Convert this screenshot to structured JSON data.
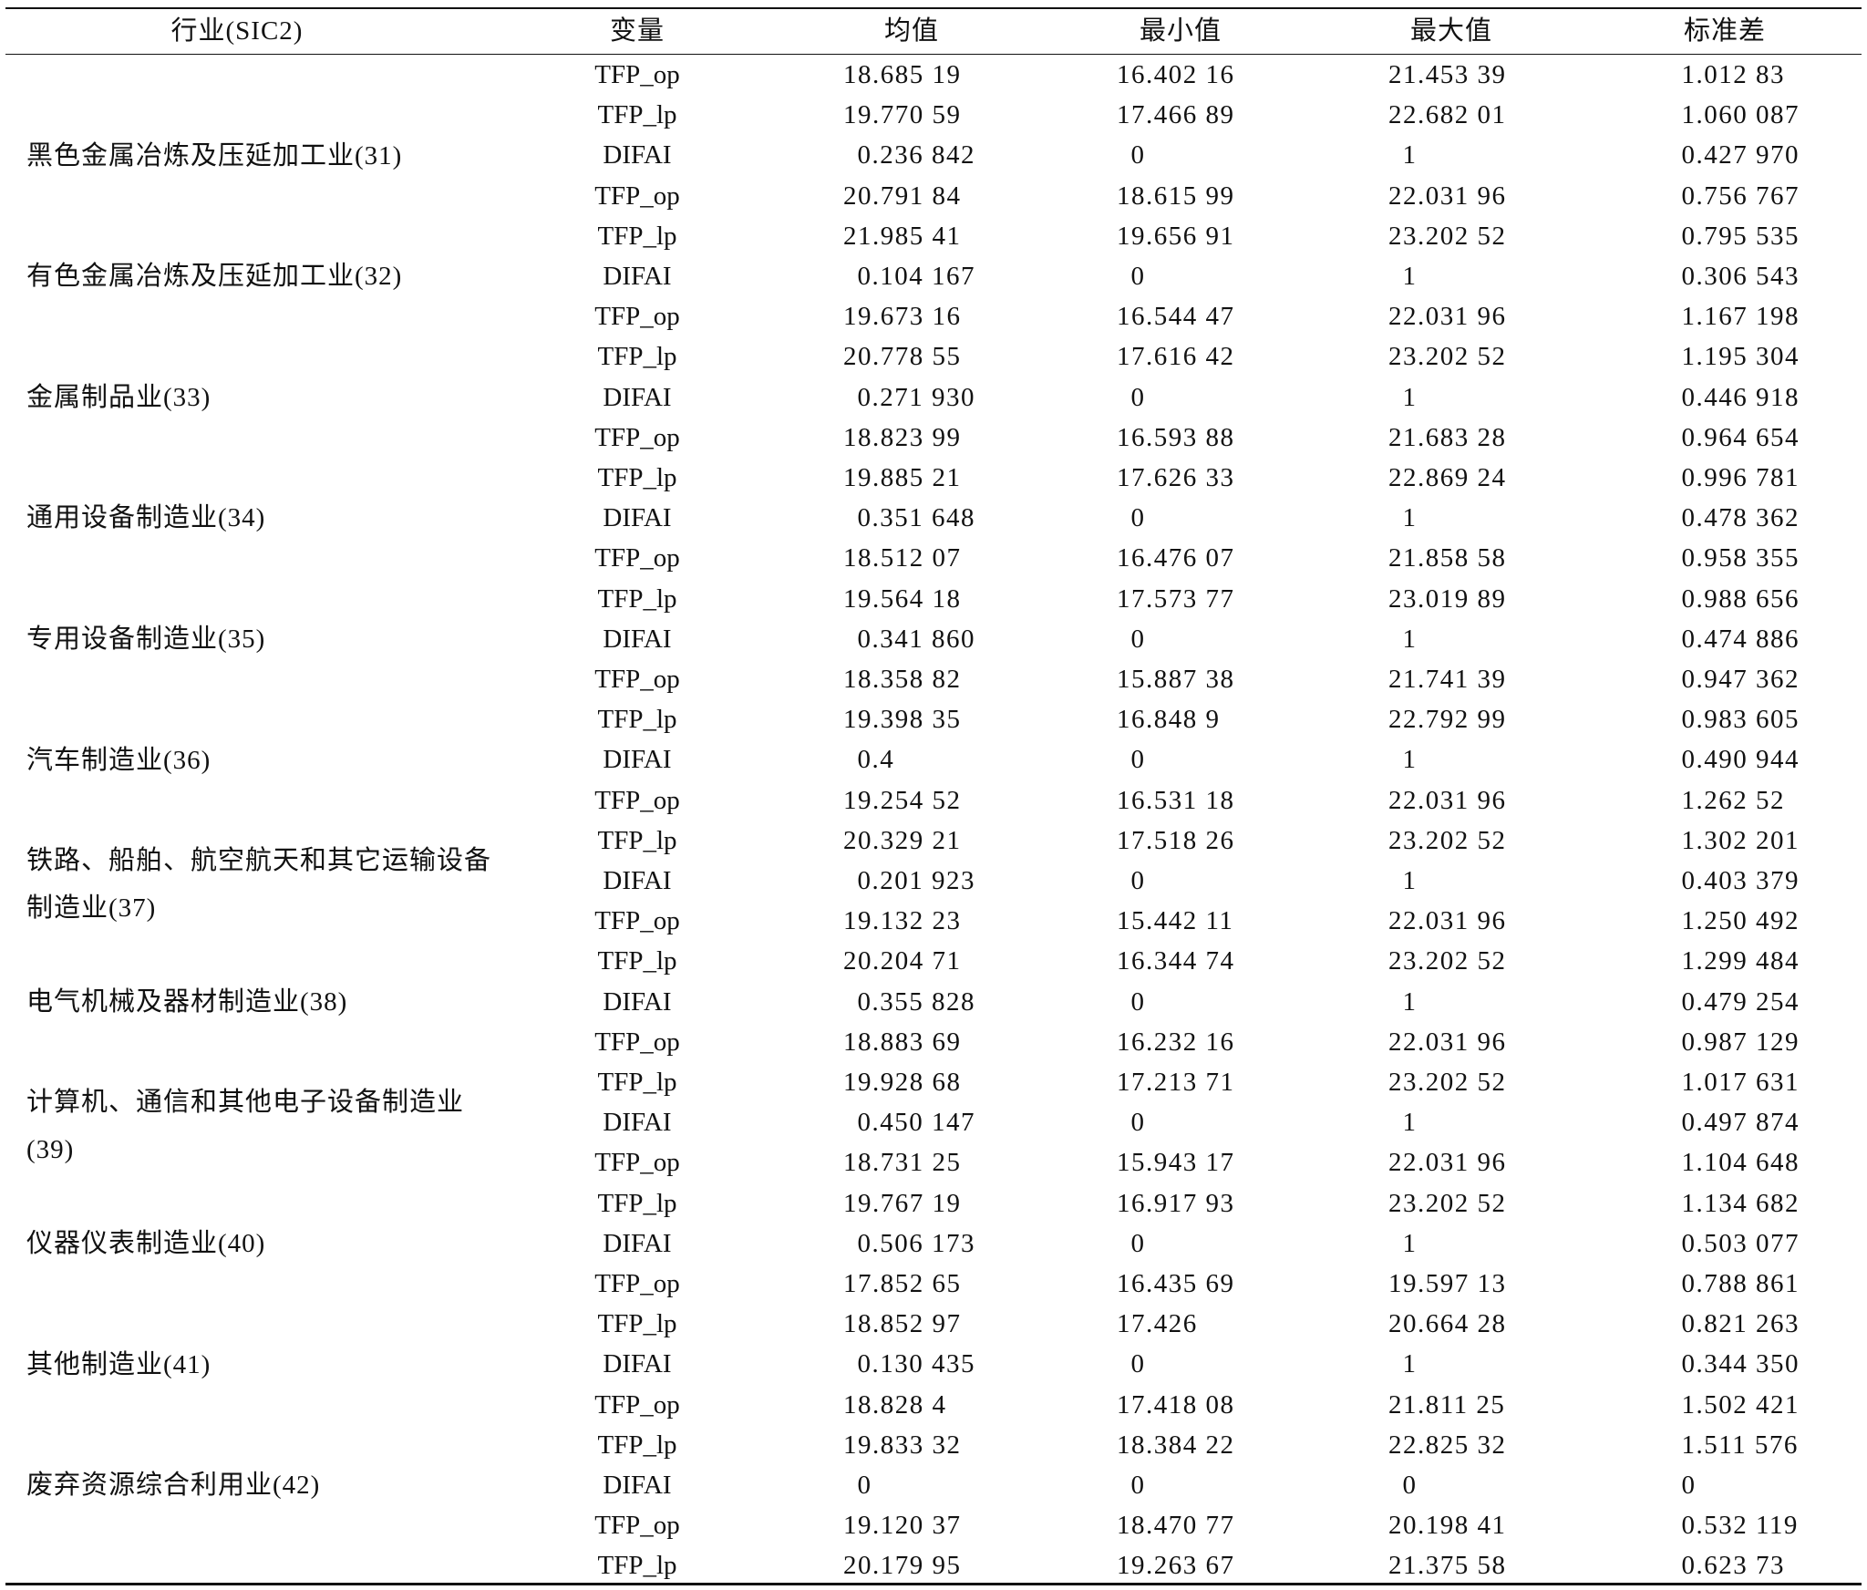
{
  "headers": [
    "行业(SIC2)",
    "变量",
    "均值",
    "最小值",
    "最大值",
    "标准差"
  ],
  "rows": [
    {
      "industry": "",
      "var": "TFP_op",
      "mean": "18.685 19",
      "min": "16.402 16",
      "max": "21.453 39",
      "sd": "1.012 83"
    },
    {
      "industry": "",
      "var": "TFP_lp",
      "mean": "19.770 59",
      "min": "17.466 89",
      "max": "22.682 01",
      "sd": "1.060 087"
    },
    {
      "industry": "黑色金属冶炼及压延加工业(31)",
      "var": "DIFAI",
      "mean": "0.236 842",
      "min": "0",
      "max": "1",
      "sd": "0.427 970"
    },
    {
      "industry": "",
      "var": "TFP_op",
      "mean": "20.791 84",
      "min": "18.615 99",
      "max": "22.031 96",
      "sd": "0.756 767"
    },
    {
      "industry": "",
      "var": "TFP_lp",
      "mean": "21.985 41",
      "min": "19.656 91",
      "max": "23.202 52",
      "sd": "0.795 535"
    },
    {
      "industry": "有色金属冶炼及压延加工业(32)",
      "var": "DIFAI",
      "mean": "0.104 167",
      "min": "0",
      "max": "1",
      "sd": "0.306 543"
    },
    {
      "industry": "",
      "var": "TFP_op",
      "mean": "19.673 16",
      "min": "16.544 47",
      "max": "22.031 96",
      "sd": "1.167 198"
    },
    {
      "industry": "",
      "var": "TFP_lp",
      "mean": "20.778 55",
      "min": "17.616 42",
      "max": "23.202 52",
      "sd": "1.195 304"
    },
    {
      "industry": "金属制品业(33)",
      "var": "DIFAI",
      "mean": "0.271 930",
      "min": "0",
      "max": "1",
      "sd": "0.446 918"
    },
    {
      "industry": "",
      "var": "TFP_op",
      "mean": "18.823 99",
      "min": "16.593 88",
      "max": "21.683 28",
      "sd": "0.964 654"
    },
    {
      "industry": "",
      "var": "TFP_lp",
      "mean": "19.885 21",
      "min": "17.626 33",
      "max": "22.869 24",
      "sd": "0.996 781"
    },
    {
      "industry": "通用设备制造业(34)",
      "var": "DIFAI",
      "mean": "0.351 648",
      "min": "0",
      "max": "1",
      "sd": "0.478 362"
    },
    {
      "industry": "",
      "var": "TFP_op",
      "mean": "18.512 07",
      "min": "16.476 07",
      "max": "21.858 58",
      "sd": "0.958 355"
    },
    {
      "industry": "",
      "var": "TFP_lp",
      "mean": "19.564 18",
      "min": "17.573 77",
      "max": "23.019 89",
      "sd": "0.988 656"
    },
    {
      "industry": "专用设备制造业(35)",
      "var": "DIFAI",
      "mean": "0.341 860",
      "min": "0",
      "max": "1",
      "sd": "0.474 886"
    },
    {
      "industry": "",
      "var": "TFP_op",
      "mean": "18.358 82",
      "min": "15.887 38",
      "max": "21.741 39",
      "sd": "0.947 362"
    },
    {
      "industry": "",
      "var": "TFP_lp",
      "mean": "19.398 35",
      "min": "16.848 9",
      "max": "22.792 99",
      "sd": "0.983 605"
    },
    {
      "industry": "汽车制造业(36)",
      "var": "DIFAI",
      "mean": "0.4",
      "min": "0",
      "max": "1",
      "sd": "0.490 944"
    },
    {
      "industry": "",
      "var": "TFP_op",
      "mean": "19.254 52",
      "min": "16.531 18",
      "max": "22.031 96",
      "sd": "1.262 52"
    },
    {
      "industry": "铁路、船舶、航空航天和其它运输设备制造业(37)",
      "var": "TFP_lp",
      "mean": "20.329 21",
      "min": "17.518 26",
      "max": "23.202 52",
      "sd": "1.302 201"
    },
    {
      "industry": "",
      "var": "DIFAI",
      "mean": "0.201 923",
      "min": "0",
      "max": "1",
      "sd": "0.403 379"
    },
    {
      "industry": "",
      "var": "TFP_op",
      "mean": "19.132 23",
      "min": "15.442 11",
      "max": "22.031 96",
      "sd": "1.250 492"
    },
    {
      "industry": "",
      "var": "TFP_lp",
      "mean": "20.204 71",
      "min": "16.344 74",
      "max": "23.202 52",
      "sd": "1.299 484"
    },
    {
      "industry": "电气机械及器材制造业(38)",
      "var": "DIFAI",
      "mean": "0.355 828",
      "min": "0",
      "max": "1",
      "sd": "0.479 254"
    },
    {
      "industry": "",
      "var": "TFP_op",
      "mean": "18.883 69",
      "min": "16.232 16",
      "max": "22.031 96",
      "sd": "0.987 129"
    },
    {
      "industry": "计算机、通信和其他电子设备制造业(39)",
      "var": "TFP_lp",
      "mean": "19.928 68",
      "min": "17.213 71",
      "max": "23.202 52",
      "sd": "1.017 631"
    },
    {
      "industry": "",
      "var": "DIFAI",
      "mean": "0.450 147",
      "min": "0",
      "max": "1",
      "sd": "0.497 874"
    },
    {
      "industry": "",
      "var": "TFP_op",
      "mean": "18.731 25",
      "min": "15.943 17",
      "max": "22.031 96",
      "sd": "1.104 648"
    },
    {
      "industry": "",
      "var": "TFP_lp",
      "mean": "19.767 19",
      "min": "16.917 93",
      "max": "23.202 52",
      "sd": "1.134 682"
    },
    {
      "industry": "仪器仪表制造业(40)",
      "var": "DIFAI",
      "mean": "0.506 173",
      "min": "0",
      "max": "1",
      "sd": "0.503 077"
    },
    {
      "industry": "",
      "var": "TFP_op",
      "mean": "17.852 65",
      "min": "16.435 69",
      "max": "19.597 13",
      "sd": "0.788 861"
    },
    {
      "industry": "",
      "var": "TFP_lp",
      "mean": "18.852 97",
      "min": "17.426",
      "max": "20.664 28",
      "sd": "0.821 263"
    },
    {
      "industry": "其他制造业(41)",
      "var": "DIFAI",
      "mean": "0.130 435",
      "min": "0",
      "max": "1",
      "sd": "0.344 350"
    },
    {
      "industry": "",
      "var": "TFP_op",
      "mean": "18.828 4",
      "min": "17.418 08",
      "max": "21.811 25",
      "sd": "1.502 421"
    },
    {
      "industry": "",
      "var": "TFP_lp",
      "mean": "19.833 32",
      "min": "18.384 22",
      "max": "22.825 32",
      "sd": "1.511 576"
    },
    {
      "industry": "废弃资源综合利用业(42)",
      "var": "DIFAI",
      "mean": "0",
      "min": "0",
      "max": "0",
      "sd": "0"
    },
    {
      "industry": "",
      "var": "TFP_op",
      "mean": "19.120 37",
      "min": "18.470 77",
      "max": "20.198 41",
      "sd": "0.532 119"
    },
    {
      "industry": "",
      "var": "TFP_lp",
      "mean": "20.179 95",
      "min": "19.263 67",
      "max": "21.375 58",
      "sd": "0.623 73"
    }
  ]
}
